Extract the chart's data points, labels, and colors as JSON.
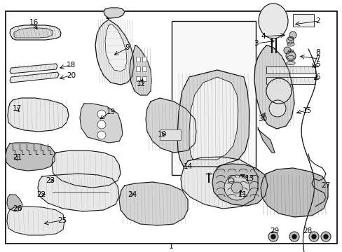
{
  "bg_color": "#ffffff",
  "border_color": "#000000",
  "border_linewidth": 1.2,
  "fig_width": 4.89,
  "fig_height": 3.6,
  "dpi": 100,
  "label_fontsize": 7.5,
  "small_fontsize": 6.5
}
